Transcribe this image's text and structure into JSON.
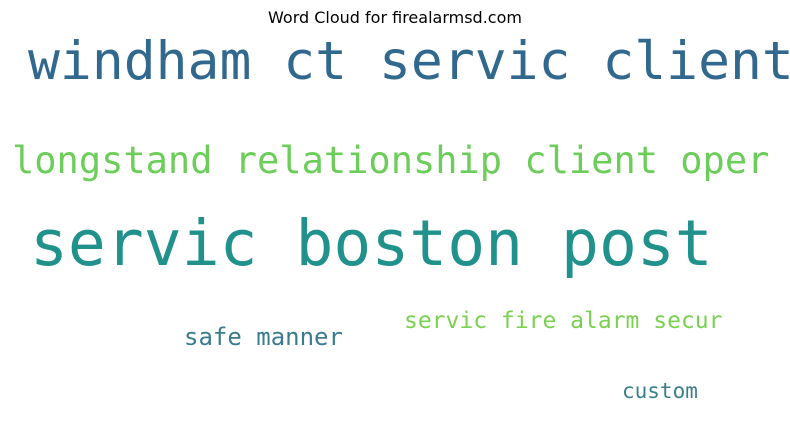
{
  "chart_data": {
    "type": "wordcloud",
    "title": "Word Cloud for firealarmsd.com",
    "words": [
      {
        "text": "windham ct servic client",
        "color": "#31688e"
      },
      {
        "text": "longstand relationship client oper",
        "color": "#6ccd5a"
      },
      {
        "text": "servic boston post",
        "color": "#21918c"
      },
      {
        "text": "servic fire alarm secur",
        "color": "#7ad151"
      },
      {
        "text": "safe manner",
        "color": "#3b7c8c"
      },
      {
        "text": "custom",
        "color": "#3a7f8c"
      }
    ]
  }
}
